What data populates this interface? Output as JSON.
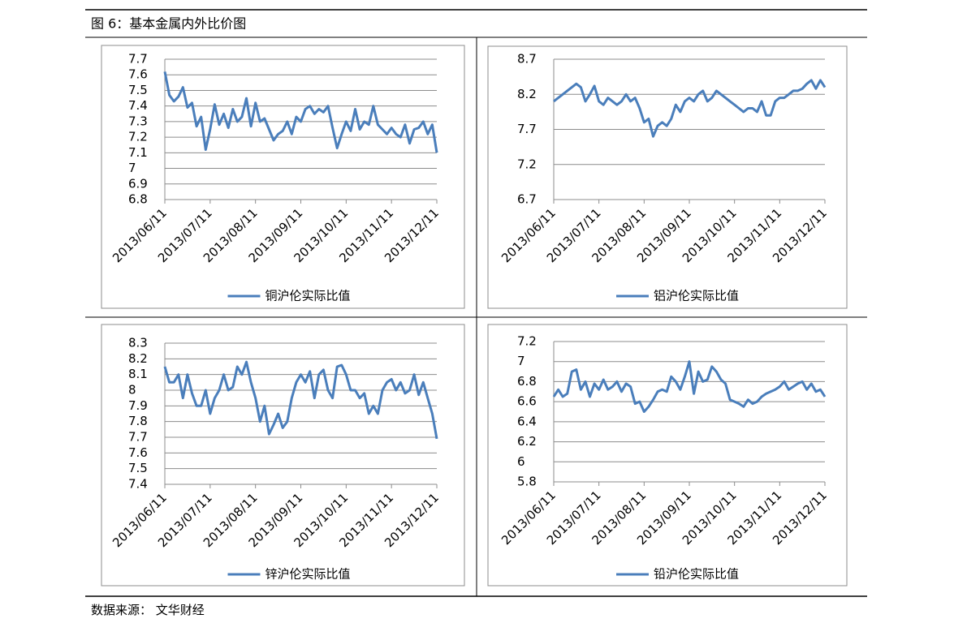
{
  "figure": {
    "title": "图 6：基本金属内外比价图",
    "source": "数据来源： 文华财经"
  },
  "chart_data": [
    {
      "type": "line",
      "categories": [
        "2013/06/11",
        null,
        null,
        null,
        null,
        null,
        null,
        null,
        null,
        null,
        "2013/07/11",
        null,
        null,
        null,
        null,
        null,
        null,
        null,
        null,
        null,
        "2013/08/11",
        null,
        null,
        null,
        null,
        null,
        null,
        null,
        null,
        null,
        "2013/09/11",
        null,
        null,
        null,
        null,
        null,
        null,
        null,
        null,
        null,
        "2013/10/11",
        null,
        null,
        null,
        null,
        null,
        null,
        null,
        null,
        null,
        "2013/11/11",
        null,
        null,
        null,
        null,
        null,
        null,
        null,
        null,
        null,
        "2013/12/11"
      ],
      "series": [
        {
          "name": "铜沪伦实际比值",
          "color": "#4a7ebb",
          "values": [
            7.62,
            7.47,
            7.43,
            7.46,
            7.52,
            7.39,
            7.42,
            7.27,
            7.33,
            7.12,
            7.25,
            7.41,
            7.28,
            7.35,
            7.26,
            7.38,
            7.3,
            7.33,
            7.45,
            7.27,
            7.42,
            7.3,
            7.32,
            7.25,
            7.18,
            7.22,
            7.24,
            7.3,
            7.22,
            7.33,
            7.3,
            7.38,
            7.4,
            7.35,
            7.38,
            7.36,
            7.4,
            7.26,
            7.13,
            7.22,
            7.3,
            7.24,
            7.38,
            7.25,
            7.3,
            7.28,
            7.4,
            7.28,
            7.25,
            7.22,
            7.26,
            7.22,
            7.2,
            7.28,
            7.16,
            7.25,
            7.26,
            7.3,
            7.22,
            7.28,
            7.1
          ]
        }
      ],
      "ylim": [
        6.8,
        7.7
      ],
      "yticks": [
        6.8,
        6.9,
        7,
        7.1,
        7.2,
        7.3,
        7.4,
        7.5,
        7.6,
        7.7
      ],
      "grid": true,
      "legend": "bottom"
    },
    {
      "type": "line",
      "categories": [
        "2013/06/11",
        null,
        null,
        null,
        null,
        null,
        null,
        null,
        null,
        null,
        "2013/07/11",
        null,
        null,
        null,
        null,
        null,
        null,
        null,
        null,
        null,
        "2013/08/11",
        null,
        null,
        null,
        null,
        null,
        null,
        null,
        null,
        null,
        "2013/09/11",
        null,
        null,
        null,
        null,
        null,
        null,
        null,
        null,
        null,
        "2013/10/11",
        null,
        null,
        null,
        null,
        null,
        null,
        null,
        null,
        null,
        "2013/11/11",
        null,
        null,
        null,
        null,
        null,
        null,
        null,
        null,
        null,
        "2013/12/11"
      ],
      "series": [
        {
          "name": "铝沪伦实际比值",
          "color": "#4a7ebb",
          "values": [
            8.1,
            8.15,
            8.2,
            8.25,
            8.3,
            8.35,
            8.3,
            8.1,
            8.2,
            8.32,
            8.1,
            8.05,
            8.15,
            8.1,
            8.05,
            8.1,
            8.2,
            8.1,
            8.15,
            8.0,
            7.8,
            7.85,
            7.6,
            7.75,
            7.8,
            7.75,
            7.85,
            8.05,
            7.95,
            8.1,
            8.15,
            8.1,
            8.2,
            8.25,
            8.1,
            8.15,
            8.25,
            8.2,
            8.15,
            8.1,
            8.05,
            8.0,
            7.95,
            8.0,
            8.0,
            7.95,
            8.1,
            7.9,
            7.9,
            8.1,
            8.15,
            8.15,
            8.2,
            8.25,
            8.25,
            8.28,
            8.35,
            8.4,
            8.28,
            8.4,
            8.3
          ]
        }
      ],
      "ylim": [
        6.7,
        8.7
      ],
      "yticks": [
        6.7,
        7.2,
        7.7,
        8.2,
        8.7
      ],
      "grid": true,
      "legend": "bottom"
    },
    {
      "type": "line",
      "categories": [
        "2013/06/11",
        null,
        null,
        null,
        null,
        null,
        null,
        null,
        null,
        null,
        "2013/07/11",
        null,
        null,
        null,
        null,
        null,
        null,
        null,
        null,
        null,
        "2013/08/11",
        null,
        null,
        null,
        null,
        null,
        null,
        null,
        null,
        null,
        "2013/09/11",
        null,
        null,
        null,
        null,
        null,
        null,
        null,
        null,
        null,
        "2013/10/11",
        null,
        null,
        null,
        null,
        null,
        null,
        null,
        null,
        null,
        "2013/11/11",
        null,
        null,
        null,
        null,
        null,
        null,
        null,
        null,
        null,
        "2013/12/11"
      ],
      "series": [
        {
          "name": "锌沪伦实际比值",
          "color": "#4a7ebb",
          "values": [
            8.15,
            8.05,
            8.05,
            8.1,
            7.95,
            8.1,
            7.98,
            7.9,
            7.9,
            8.0,
            7.85,
            7.95,
            8.0,
            8.1,
            8.0,
            8.02,
            8.15,
            8.1,
            8.18,
            8.05,
            7.95,
            7.8,
            7.9,
            7.72,
            7.78,
            7.85,
            7.76,
            7.8,
            7.95,
            8.05,
            8.1,
            8.05,
            8.12,
            7.95,
            8.1,
            8.13,
            8.0,
            7.95,
            8.15,
            8.16,
            8.1,
            8.0,
            8.0,
            7.95,
            7.98,
            7.85,
            7.9,
            7.85,
            8.0,
            8.05,
            8.07,
            8.0,
            8.05,
            7.98,
            8.0,
            8.1,
            7.97,
            8.05,
            7.95,
            7.85,
            7.69
          ]
        }
      ],
      "ylim": [
        7.4,
        8.3
      ],
      "yticks": [
        7.4,
        7.5,
        7.6,
        7.7,
        7.8,
        7.9,
        8,
        8.1,
        8.2,
        8.3
      ],
      "grid": true,
      "legend": "bottom"
    },
    {
      "type": "line",
      "categories": [
        "2013/06/11",
        null,
        null,
        null,
        null,
        null,
        null,
        null,
        null,
        null,
        "2013/07/11",
        null,
        null,
        null,
        null,
        null,
        null,
        null,
        null,
        null,
        "2013/08/11",
        null,
        null,
        null,
        null,
        null,
        null,
        null,
        null,
        null,
        "2013/09/11",
        null,
        null,
        null,
        null,
        null,
        null,
        null,
        null,
        null,
        "2013/10/11",
        null,
        null,
        null,
        null,
        null,
        null,
        null,
        null,
        null,
        "2013/11/11",
        null,
        null,
        null,
        null,
        null,
        null,
        null,
        null,
        null,
        "2013/12/11"
      ],
      "series": [
        {
          "name": "铅沪伦实际比值",
          "color": "#4a7ebb",
          "values": [
            6.65,
            6.72,
            6.65,
            6.68,
            6.9,
            6.92,
            6.72,
            6.8,
            6.65,
            6.78,
            6.72,
            6.82,
            6.72,
            6.75,
            6.8,
            6.7,
            6.78,
            6.75,
            6.58,
            6.6,
            6.5,
            6.55,
            6.62,
            6.7,
            6.72,
            6.7,
            6.85,
            6.8,
            6.72,
            6.85,
            7.0,
            6.68,
            6.9,
            6.8,
            6.82,
            6.95,
            6.9,
            6.82,
            6.78,
            6.62,
            6.6,
            6.58,
            6.55,
            6.62,
            6.58,
            6.6,
            6.65,
            6.68,
            6.7,
            6.72,
            6.75,
            6.8,
            6.72,
            6.75,
            6.78,
            6.8,
            6.72,
            6.78,
            6.7,
            6.72,
            6.65
          ]
        }
      ],
      "ylim": [
        5.8,
        7.2
      ],
      "yticks": [
        5.8,
        6,
        6.2,
        6.4,
        6.6,
        6.8,
        7,
        7.2
      ],
      "grid": true,
      "legend": "bottom"
    }
  ]
}
